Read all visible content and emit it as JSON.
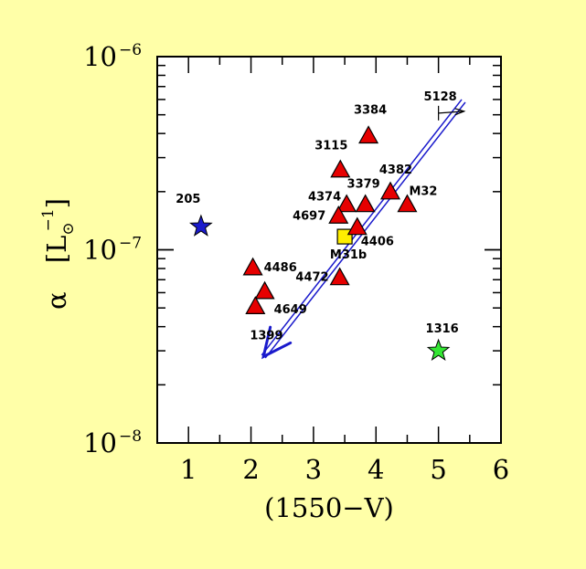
{
  "chart_data": {
    "type": "scatter",
    "title": "",
    "xlabel": "(1550−V)",
    "ylabel": {
      "symbol": "α",
      "unit_base": "L",
      "unit_sub": "⊙",
      "unit_exp": "−1"
    },
    "xlim": [
      0.5,
      6.0
    ],
    "ylim": [
      1e-08,
      1e-06
    ],
    "yscale": "log",
    "grid": false,
    "xticks": [
      {
        "value": 1,
        "label": "1"
      },
      {
        "value": 2,
        "label": "2"
      },
      {
        "value": 3,
        "label": "3"
      },
      {
        "value": 4,
        "label": "4"
      },
      {
        "value": 5,
        "label": "5"
      },
      {
        "value": 6,
        "label": "6"
      }
    ],
    "yticks": [
      {
        "value": 1e-08,
        "base": "10",
        "exp": "−8"
      },
      {
        "value": 1e-07,
        "base": "10",
        "exp": "−7"
      },
      {
        "value": 1e-06,
        "base": "10",
        "exp": "−6"
      }
    ],
    "points": [
      {
        "label": "205",
        "x": 1.2,
        "y": 1.32e-07,
        "marker": "star",
        "color": "#1a1acc"
      },
      {
        "label": "1316",
        "x": 5.0,
        "y": 3e-08,
        "marker": "star",
        "color": "#33e633"
      },
      {
        "label": "M31b",
        "x": 3.5,
        "y": 1.17e-07,
        "marker": "square",
        "color": "#ffee00"
      },
      {
        "label": "4486",
        "x": 2.03,
        "y": 8.1e-08,
        "marker": "triangle",
        "color": "#e60000"
      },
      {
        "label": "4649",
        "x": 2.22,
        "y": 6.1e-08,
        "marker": "triangle",
        "color": "#e60000"
      },
      {
        "label": "1399",
        "x": 2.07,
        "y": 5.1e-08,
        "marker": "triangle",
        "color": "#e60000"
      },
      {
        "label": "4472",
        "x": 3.42,
        "y": 7.2e-08,
        "marker": "triangle",
        "color": "#e60000"
      },
      {
        "label": "3115",
        "x": 3.43,
        "y": 2.6e-07,
        "marker": "triangle",
        "color": "#e60000"
      },
      {
        "label": "3384",
        "x": 3.88,
        "y": 3.9e-07,
        "marker": "triangle",
        "color": "#e60000"
      },
      {
        "label": "4374",
        "x": 3.53,
        "y": 1.72e-07,
        "marker": "triangle",
        "color": "#e60000"
      },
      {
        "label": "4697",
        "x": 3.4,
        "y": 1.5e-07,
        "marker": "triangle",
        "color": "#e60000"
      },
      {
        "label": "3379",
        "x": 3.83,
        "y": 1.72e-07,
        "marker": "triangle",
        "color": "#e60000"
      },
      {
        "label": "4406",
        "x": 3.7,
        "y": 1.31e-07,
        "marker": "triangle",
        "color": "#e60000"
      },
      {
        "label": "4382",
        "x": 4.23,
        "y": 2e-07,
        "marker": "triangle",
        "color": "#e60000"
      },
      {
        "label": "M32",
        "x": 4.5,
        "y": 1.72e-07,
        "marker": "triangle",
        "color": "#e60000"
      },
      {
        "label": "5128",
        "x": 5.0,
        "y": 5.1e-07,
        "marker": "upper-limit",
        "color": "#000000"
      }
    ],
    "trend_arrow": {
      "from": {
        "x": 5.4,
        "y": 5.9e-07
      },
      "to": {
        "x": 2.2,
        "y": 2.8e-08
      },
      "color": "#1a1acc"
    },
    "colors": {
      "background": "#ffffa8",
      "plot_area": "#ffffff"
    }
  }
}
